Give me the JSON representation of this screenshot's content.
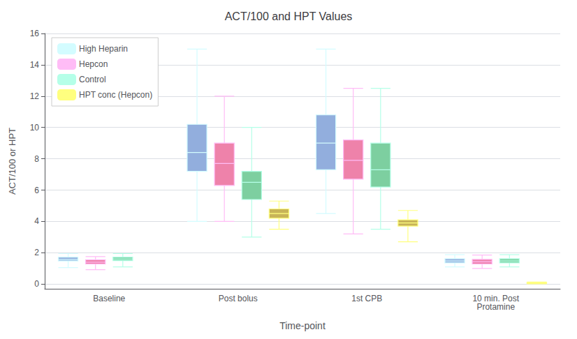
{
  "chart_data": {
    "type": "boxplot",
    "title": "ACT/100 and HPT Values",
    "xlabel": "Time-point",
    "ylabel": "ACT/100 or HPT",
    "categories": [
      "Baseline",
      "Post bolus",
      "1st CPB",
      "10 min. Post\nProtamine"
    ],
    "series": [
      {
        "name": "High Heparin",
        "color": "#92aedd",
        "values": [
          {
            "whislo": 1.05,
            "q1": 1.48,
            "med": 1.58,
            "q3": 1.72,
            "whishi": 1.95
          },
          {
            "whislo": 4.0,
            "q1": 7.2,
            "med": 8.4,
            "q3": 10.2,
            "whishi": 15.0
          },
          {
            "whislo": 4.5,
            "q1": 7.3,
            "med": 9.0,
            "q3": 10.8,
            "whishi": 15.0
          },
          {
            "whislo": 1.1,
            "q1": 1.35,
            "med": 1.48,
            "q3": 1.62,
            "whishi": 1.88
          }
        ]
      },
      {
        "name": "Hepcon",
        "color": "#ee82aa",
        "values": [
          {
            "whislo": 0.92,
            "q1": 1.28,
            "med": 1.4,
            "q3": 1.55,
            "whishi": 1.75
          },
          {
            "whislo": 4.0,
            "q1": 6.3,
            "med": 7.7,
            "q3": 9.0,
            "whishi": 12.0
          },
          {
            "whislo": 3.2,
            "q1": 6.7,
            "med": 7.9,
            "q3": 9.2,
            "whishi": 12.5
          },
          {
            "whislo": 1.0,
            "q1": 1.28,
            "med": 1.42,
            "q3": 1.58,
            "whishi": 1.85
          }
        ]
      },
      {
        "name": "Control",
        "color": "#7dcfa0",
        "values": [
          {
            "whislo": 1.1,
            "q1": 1.5,
            "med": 1.6,
            "q3": 1.72,
            "whishi": 1.95
          },
          {
            "whislo": 3.0,
            "q1": 5.4,
            "med": 6.5,
            "q3": 7.2,
            "whishi": 10.0
          },
          {
            "whislo": 3.5,
            "q1": 6.2,
            "med": 7.3,
            "q3": 9.0,
            "whishi": 12.5
          },
          {
            "whislo": 1.1,
            "q1": 1.35,
            "med": 1.48,
            "q3": 1.62,
            "whishi": 1.88
          }
        ]
      },
      {
        "name": "HPT conc (Hepcon)",
        "color": "#c8b458",
        "values": [
          null,
          {
            "whislo": 3.5,
            "q1": 4.2,
            "med": 4.5,
            "q3": 4.8,
            "whishi": 5.3
          },
          {
            "whislo": 2.7,
            "q1": 3.7,
            "med": 3.9,
            "q3": 4.1,
            "whishi": 4.7
          },
          {
            "whislo": 0.02,
            "q1": 0.05,
            "med": 0.07,
            "q3": 0.1,
            "whishi": 0.13
          }
        ]
      }
    ],
    "ylim": [
      -0.3,
      16
    ],
    "yticks": [
      0,
      2,
      4,
      6,
      8,
      10,
      12,
      14,
      16
    ],
    "grid": true,
    "legend": "upper left"
  }
}
